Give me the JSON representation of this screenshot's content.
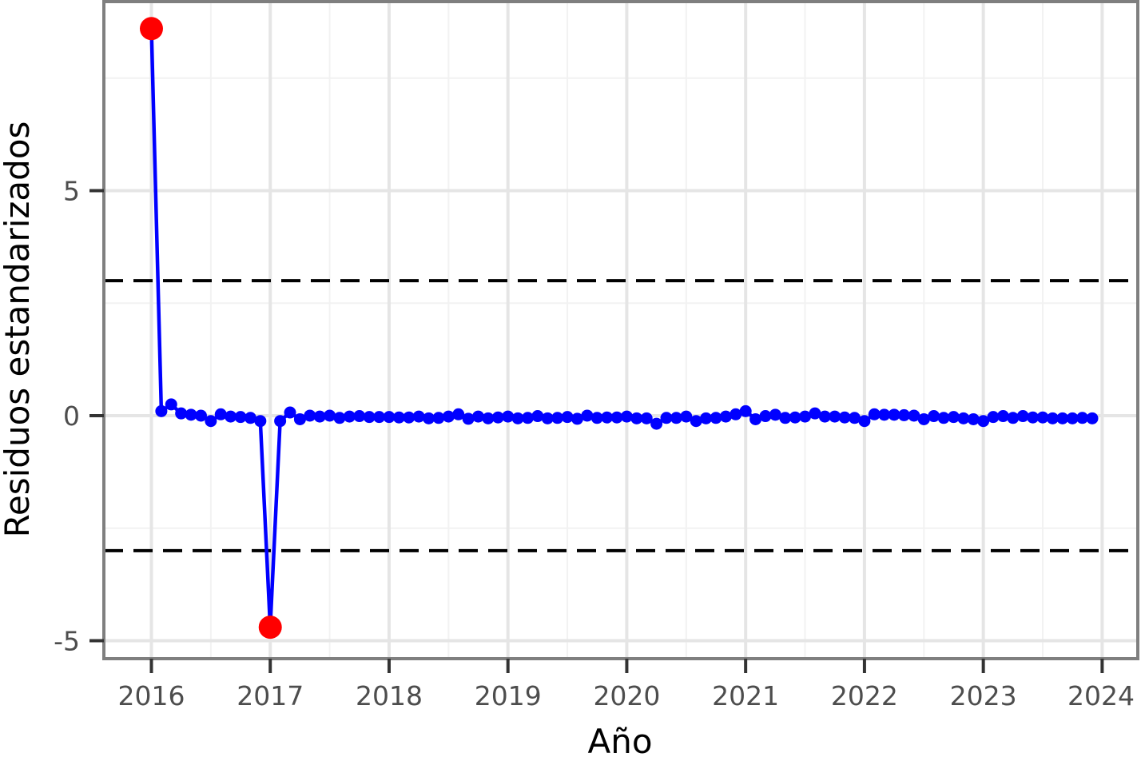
{
  "chart_data": {
    "type": "line",
    "title": "",
    "xlabel": "Año",
    "ylabel": "Residuos estandarizados",
    "xlim": [
      2015.6,
      2024.3
    ],
    "ylim": [
      -5.4,
      9.2
    ],
    "x_ticks": [
      2016,
      2017,
      2018,
      2019,
      2020,
      2021,
      2022,
      2023,
      2024
    ],
    "y_ticks": [
      -5,
      0,
      5
    ],
    "y_tick_labels": [
      "-5",
      "0",
      "5"
    ],
    "x_tick_labels": [
      "2016",
      "2017",
      "2018",
      "2019",
      "2020",
      "2021",
      "2022",
      "2023",
      "2024"
    ],
    "grid": true,
    "reference_lines": [
      3,
      -3
    ],
    "series": [
      {
        "color": "#0000ff",
        "x_start": 2016,
        "step_months": 1,
        "values": [
          8.6,
          0.1,
          0.25,
          0.05,
          0.02,
          0.0,
          -0.12,
          0.03,
          -0.02,
          -0.03,
          -0.05,
          -0.12,
          -4.7,
          -0.12,
          0.07,
          -0.08,
          0.0,
          -0.02,
          0.0,
          -0.05,
          -0.02,
          -0.01,
          -0.03,
          -0.03,
          -0.03,
          -0.04,
          -0.04,
          -0.02,
          -0.06,
          -0.05,
          -0.02,
          0.03,
          -0.07,
          -0.02,
          -0.06,
          -0.04,
          -0.02,
          -0.06,
          -0.05,
          -0.01,
          -0.06,
          -0.05,
          -0.03,
          -0.07,
          0.0,
          -0.05,
          -0.04,
          -0.04,
          -0.02,
          -0.06,
          -0.06,
          -0.18,
          -0.05,
          -0.05,
          -0.02,
          -0.12,
          -0.06,
          -0.05,
          -0.02,
          0.03,
          0.1,
          -0.08,
          -0.01,
          0.02,
          -0.05,
          -0.04,
          -0.02,
          0.05,
          -0.02,
          -0.02,
          -0.04,
          -0.05,
          -0.12,
          0.03,
          0.02,
          0.02,
          0.01,
          0.0,
          -0.08,
          -0.01,
          -0.05,
          -0.03,
          -0.06,
          -0.08,
          -0.12,
          -0.03,
          -0.01,
          -0.05,
          -0.01,
          -0.04,
          -0.04,
          -0.06,
          -0.06,
          -0.06,
          -0.05,
          -0.06
        ]
      }
    ],
    "highlighted_points": [
      {
        "x": 2016.0,
        "y": 8.6,
        "color": "#ff0000"
      },
      {
        "x": 2017.0,
        "y": -4.7,
        "color": "#ff0000"
      }
    ]
  }
}
